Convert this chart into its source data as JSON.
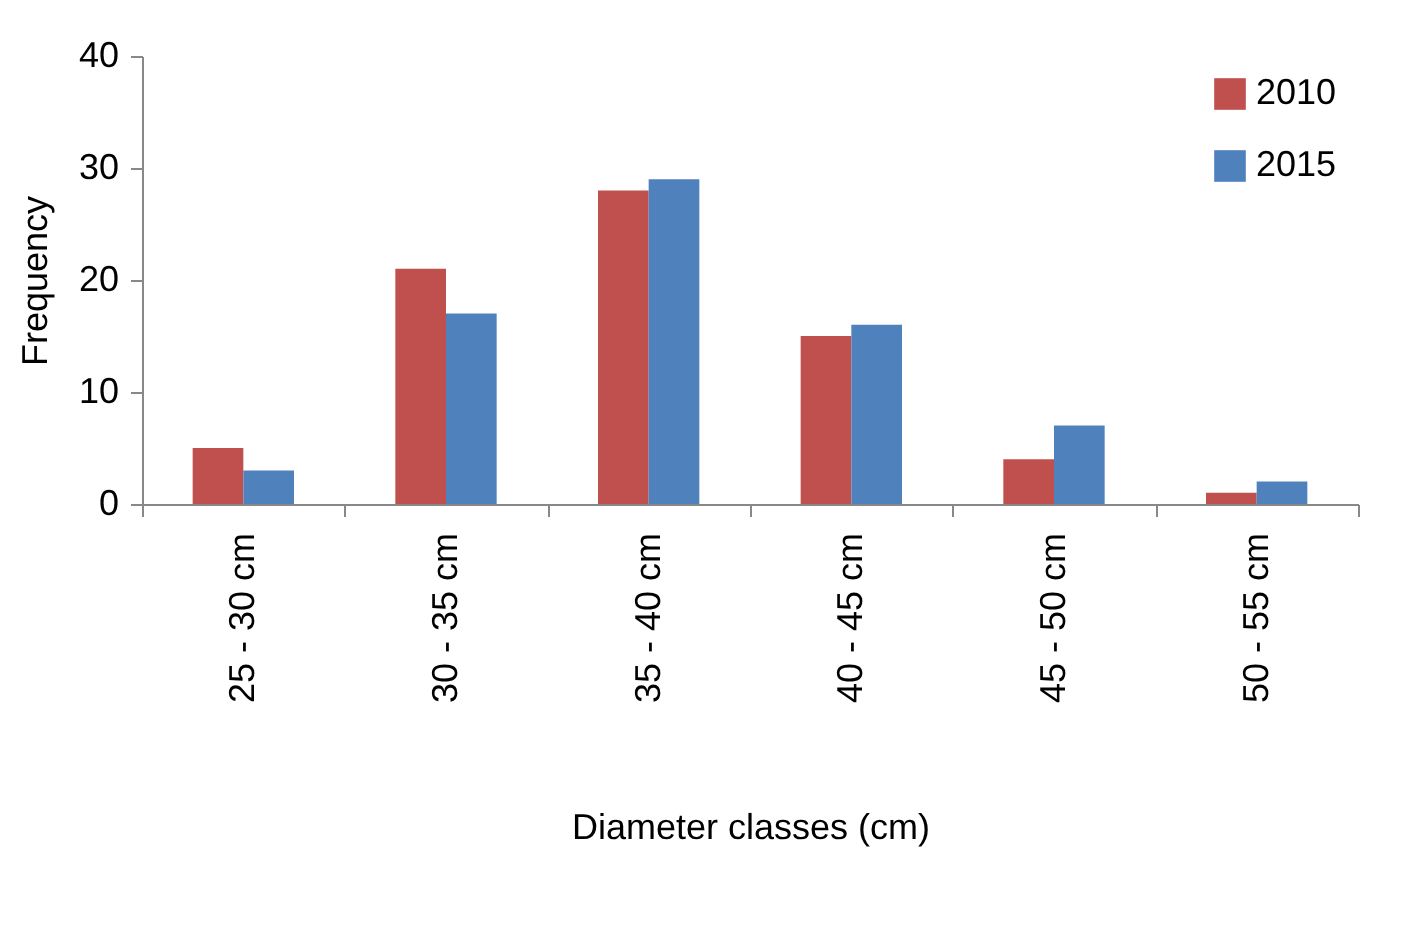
{
  "chart_data": {
    "type": "bar",
    "xlabel": "Diameter classes (cm)",
    "ylabel": "Frequency",
    "categories": [
      "25 - 30 cm",
      "30 - 35 cm",
      "35 - 40 cm",
      "40 - 45 cm",
      "45 - 50 cm",
      "50 - 55 cm"
    ],
    "series": [
      {
        "name": "2010",
        "color": "#c0504d",
        "values": [
          5,
          21,
          28,
          15,
          4,
          1
        ]
      },
      {
        "name": "2015",
        "color": "#4f81bd",
        "values": [
          3,
          17,
          29,
          16,
          7,
          2
        ]
      }
    ],
    "ylim": [
      0,
      40
    ],
    "yticks": [
      0,
      10,
      20,
      30,
      40
    ],
    "grid": false,
    "legend": "top right"
  }
}
